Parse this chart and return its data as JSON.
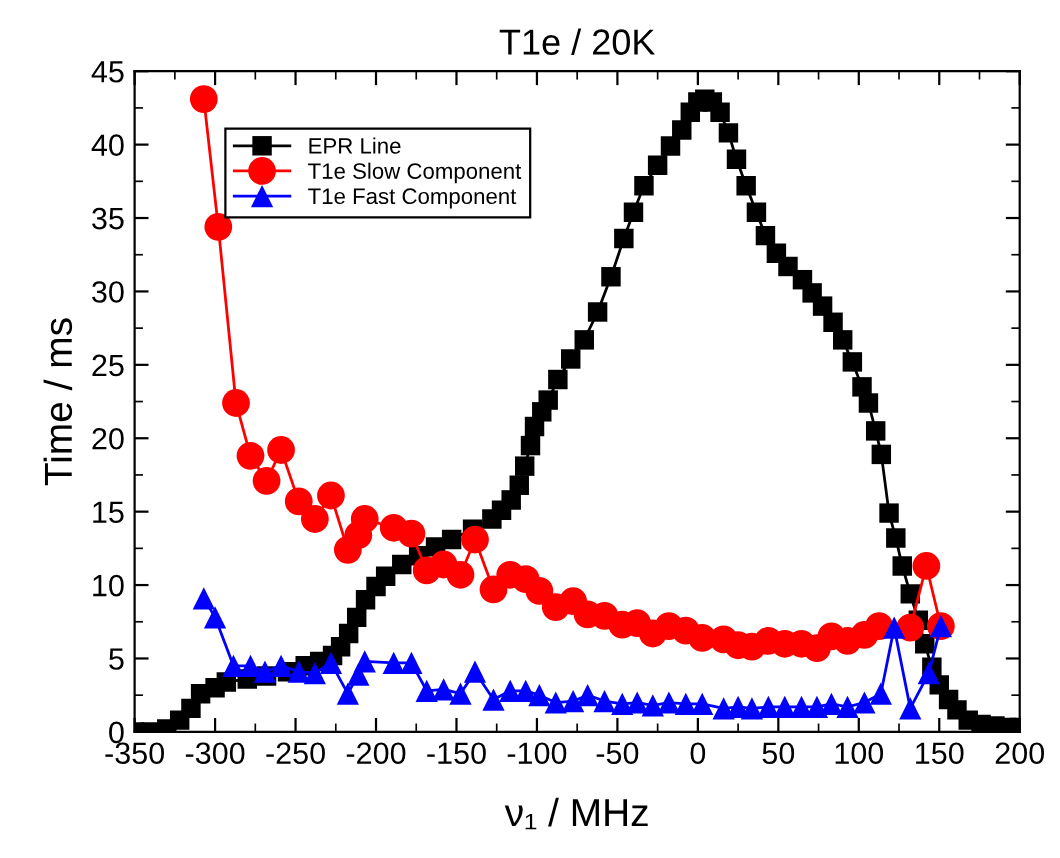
{
  "chart_data": {
    "type": "line",
    "title": "T1e / 20K",
    "xlabel": "ν₁ / MHz",
    "ylabel": "Time / ms",
    "xlim": [
      -350,
      200
    ],
    "ylim": [
      0,
      45
    ],
    "xticks": [
      -350,
      -300,
      -250,
      -200,
      -150,
      -100,
      -50,
      0,
      50,
      100,
      150,
      200
    ],
    "yticks": [
      0,
      5,
      10,
      15,
      20,
      25,
      30,
      35,
      40,
      45
    ],
    "legend": "top left",
    "grid": false,
    "series": [
      {
        "name": "EPR Line",
        "color": "#000000",
        "marker": "square",
        "x": [
          -350,
          -340,
          -330,
          -322,
          -315,
          -309,
          -300,
          -293,
          -280,
          -268,
          -255,
          -244,
          -235,
          -227,
          -222,
          -217,
          -212,
          -206.5,
          -200,
          -194,
          -184,
          -173.5,
          -163,
          -153,
          -140,
          -128,
          -122,
          -116,
          -111,
          -107.6,
          -104,
          -101.5,
          -97,
          -93,
          -87,
          -79,
          -70.6,
          -62.3,
          -54,
          -46,
          -40,
          -33.5,
          -25,
          -17,
          -10,
          -4.7,
          0,
          4.3,
          9,
          13.8,
          19,
          24,
          30,
          36.4,
          42,
          48.8,
          56,
          65,
          71,
          77.5,
          84,
          90,
          96,
          102,
          106,
          110.5,
          114,
          118.8,
          123,
          127,
          132,
          137,
          141,
          145.4,
          150,
          155.8,
          161,
          168,
          176,
          184.6,
          192,
          200
        ],
        "values": [
          0,
          0,
          0.2,
          0.8,
          1.6,
          2.6,
          3.0,
          3.4,
          3.6,
          3.8,
          4.1,
          4.5,
          4.8,
          5.2,
          5.8,
          6.7,
          7.8,
          9.0,
          9.9,
          10.6,
          11.4,
          12.0,
          12.6,
          13.1,
          13.8,
          14.5,
          15.1,
          15.8,
          16.8,
          18.1,
          19.5,
          20.8,
          21.8,
          22.6,
          24.0,
          25.4,
          26.7,
          28.6,
          31.0,
          33.6,
          35.4,
          37.2,
          38.6,
          39.9,
          41.0,
          42.2,
          42.9,
          43.1,
          42.9,
          42.2,
          40.8,
          39.0,
          37.2,
          35.4,
          33.8,
          32.6,
          31.7,
          30.8,
          29.9,
          29.0,
          27.9,
          26.7,
          25.2,
          23.5,
          22.4,
          20.5,
          18.9,
          14.9,
          13.2,
          11.3,
          9.4,
          7.6,
          6.0,
          4.4,
          3.2,
          2.2,
          1.5,
          0.8,
          0.5,
          0.4,
          0.3,
          0.3
        ]
      },
      {
        "name": "T1e Slow Component",
        "color": "#ff0000",
        "marker": "circle",
        "x": [
          -307,
          -298,
          -287,
          -278,
          -268,
          -259,
          -248,
          -238,
          -228,
          -217.5,
          -211,
          -207,
          -189,
          -178,
          -168.5,
          -158,
          -147.5,
          -138.5,
          -127,
          -116.6,
          -107,
          -98.5,
          -88.3,
          -77.5,
          -68.5,
          -58,
          -47,
          -37.7,
          -28,
          -18,
          -7.5,
          2.7,
          16,
          25,
          33.6,
          43.8,
          54,
          64.4,
          74,
          83,
          93,
          103.5,
          112.6,
          132,
          142,
          151
        ],
        "values": [
          43.1,
          34.4,
          22.4,
          18.8,
          17.1,
          19.2,
          15.7,
          14.5,
          16.1,
          12.4,
          13.4,
          14.5,
          13.9,
          13.5,
          11.0,
          11.4,
          10.7,
          13.1,
          9.7,
          10.7,
          10.4,
          9.6,
          8.5,
          8.9,
          8.0,
          7.9,
          7.3,
          7.4,
          6.7,
          7.2,
          6.9,
          6.4,
          6.3,
          5.9,
          5.8,
          6.2,
          6.0,
          6.0,
          5.7,
          6.5,
          6.2,
          6.6,
          7.2,
          7.1,
          11.3,
          7.2
        ]
      },
      {
        "name": "T1e Fast Component",
        "color": "#0000ff",
        "marker": "triangle",
        "x": [
          -307,
          -300,
          -288.6,
          -278,
          -269,
          -259,
          -248,
          -238,
          -228,
          -217.5,
          -211,
          -207,
          -189,
          -178,
          -168.5,
          -158,
          -147.5,
          -138.5,
          -127,
          -116.6,
          -107,
          -98.5,
          -88.3,
          -77.5,
          -68.5,
          -58,
          -47,
          -37.7,
          -28,
          -18,
          -7.5,
          2.7,
          16,
          25,
          33.6,
          43.8,
          54,
          64.4,
          74,
          83,
          93,
          103.5,
          113.7,
          122,
          132,
          143.5,
          151
        ],
        "values": [
          9.1,
          7.8,
          4.5,
          4.5,
          4.1,
          4.5,
          4.1,
          4.0,
          4.7,
          2.6,
          3.9,
          4.8,
          4.7,
          4.7,
          2.8,
          2.9,
          2.6,
          4.1,
          2.2,
          2.8,
          2.8,
          2.5,
          2.0,
          2.1,
          2.5,
          2.1,
          1.9,
          2.0,
          1.8,
          2.0,
          1.9,
          1.9,
          1.6,
          1.7,
          1.6,
          1.7,
          1.7,
          1.7,
          1.7,
          1.9,
          1.7,
          2.0,
          2.6,
          7.1,
          1.6,
          4.0,
          7.2
        ]
      }
    ]
  }
}
